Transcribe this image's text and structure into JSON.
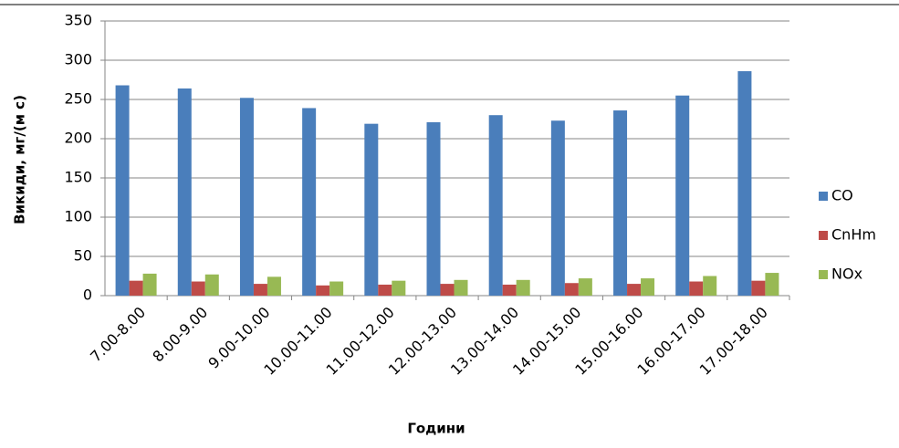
{
  "chart_data": {
    "type": "bar",
    "y_label": "Викиди, мг/(м с)",
    "x_label": "Години",
    "categories": [
      "7.00-8.00",
      "8.00-9.00",
      "9.00-10.00",
      "10.00-11.00",
      "11.00-12.00",
      "12.00-13.00",
      "13.00-14.00",
      "14.00-15.00",
      "15.00-16.00",
      "16.00-17.00",
      "17.00-18.00"
    ],
    "series": [
      {
        "name": "CO",
        "color": "#4a7ebb",
        "values": [
          268,
          264,
          252,
          239,
          219,
          221,
          230,
          223,
          236,
          255,
          286
        ]
      },
      {
        "name": "CnHm",
        "color": "#be4b48",
        "values": [
          19,
          18,
          15,
          13,
          14,
          15,
          14,
          16,
          15,
          18,
          19
        ]
      },
      {
        "name": "NOx",
        "color": "#98b954",
        "values": [
          28,
          27,
          24,
          18,
          19,
          20,
          20,
          22,
          22,
          25,
          29
        ]
      }
    ],
    "ylim": [
      0,
      350
    ],
    "yticks": [
      0,
      50,
      100,
      150,
      200,
      250,
      300,
      350
    ],
    "grid": true,
    "legend": "right"
  }
}
